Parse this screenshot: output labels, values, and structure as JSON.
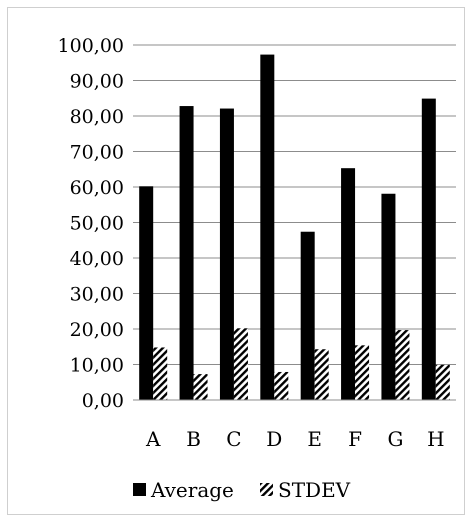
{
  "chart_data": {
    "type": "bar",
    "categories": [
      "A",
      "B",
      "C",
      "D",
      "E",
      "F",
      "G",
      "H"
    ],
    "series": [
      {
        "name": "Average",
        "values": [
          60.2,
          82.8,
          82.1,
          97.3,
          47.4,
          65.3,
          58.1,
          84.9
        ],
        "color": "#000000",
        "fill": "solid"
      },
      {
        "name": "STDEV",
        "values": [
          14.8,
          7.3,
          20.2,
          7.9,
          14.3,
          15.4,
          19.7,
          9.9
        ],
        "color": "#000000",
        "fill": "diagonal-hatch"
      }
    ],
    "y_ticks": [
      "0,00",
      "10,00",
      "20,00",
      "30,00",
      "40,00",
      "50,00",
      "60,00",
      "70,00",
      "80,00",
      "90,00",
      "100,00"
    ],
    "ylim": [
      0,
      100
    ],
    "grid": "horizontal",
    "legend": "bottom"
  }
}
